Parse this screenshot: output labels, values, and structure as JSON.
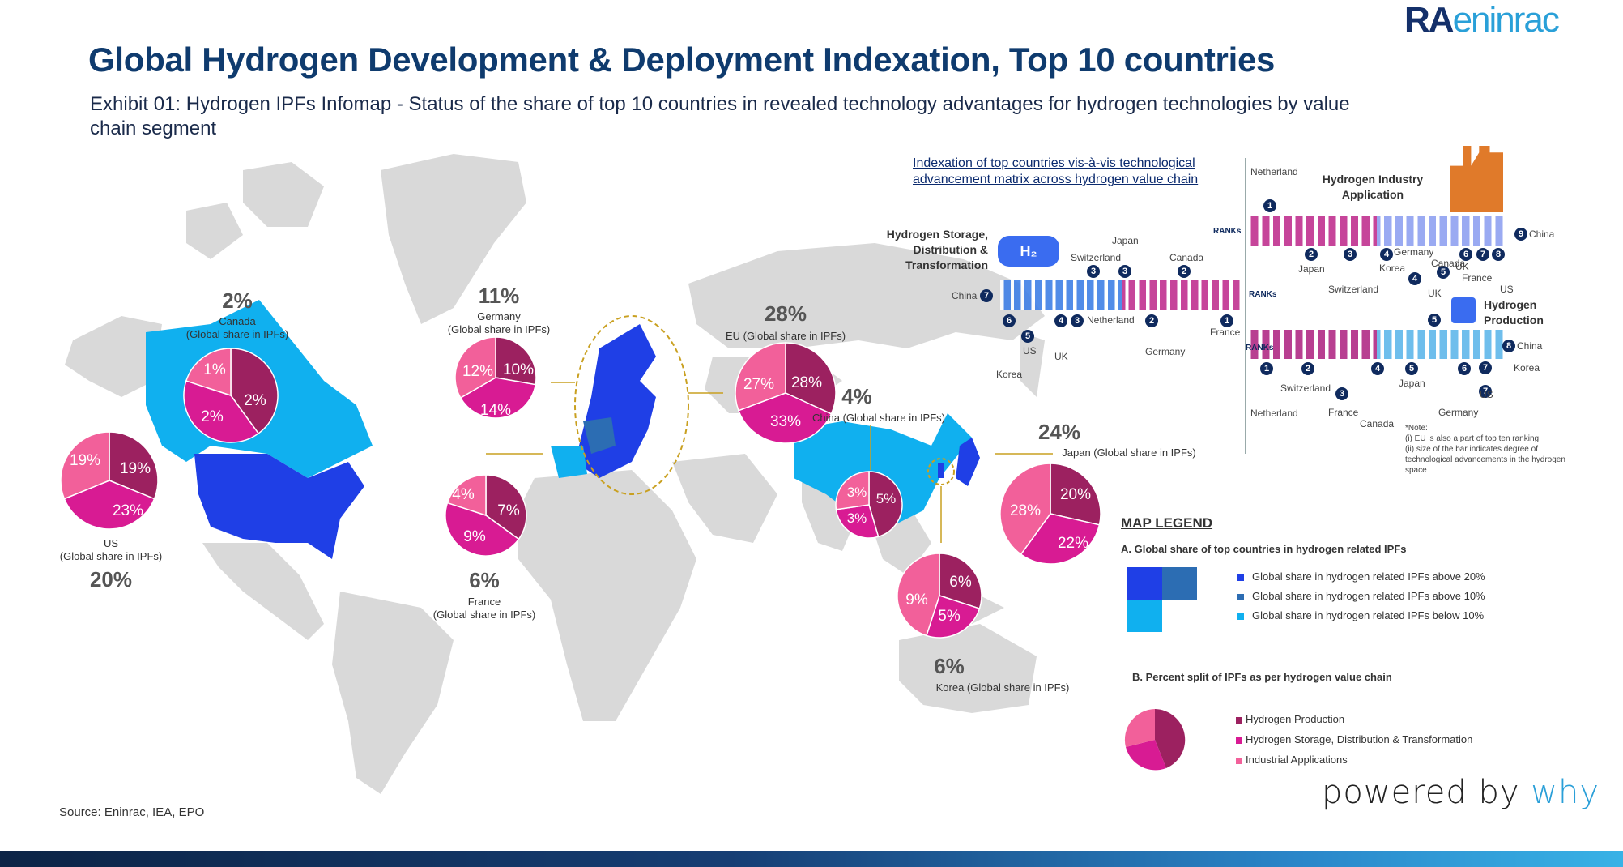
{
  "header": {
    "title": "Global Hydrogen Development & Deployment Indexation, Top 10 countries",
    "subtitle": "Exhibit 01: Hydrogen IPFs Infomap - Status of the share of top 10 countries in revealed technology advantages for hydrogen technologies by value chain segment",
    "logo_primary": "RA",
    "logo_secondary": "eninrac"
  },
  "countries": [
    {
      "id": "canada",
      "total": "2%",
      "name": "Canada",
      "caption": "(Global share in IPFs)",
      "slices": [
        "1%",
        "2%",
        "2%"
      ]
    },
    {
      "id": "us",
      "total": "20%",
      "name": "US",
      "caption": "(Global share in IPFs)",
      "slices": [
        "19%",
        "19%",
        "23%"
      ]
    },
    {
      "id": "germany",
      "total": "11%",
      "name": "Germany",
      "caption": "(Global share in IPFs)",
      "slices": [
        "12%",
        "10%",
        "14%"
      ]
    },
    {
      "id": "france",
      "total": "6%",
      "name": "France",
      "caption": "(Global share in IPFs)",
      "slices": [
        "4%",
        "7%",
        "9%"
      ]
    },
    {
      "id": "eu",
      "total": "28%",
      "name": "EU (Global share in IPFs)",
      "caption": "",
      "slices": [
        "27%",
        "28%",
        "33%"
      ]
    },
    {
      "id": "china",
      "total": "4%",
      "name": "China (Global share in IPFs)",
      "caption": "",
      "slices": [
        "3%",
        "5%",
        "3%"
      ]
    },
    {
      "id": "japan",
      "total": "24%",
      "name": "Japan (Global share in IPFs)",
      "caption": "",
      "slices": [
        "28%",
        "20%",
        "22%"
      ]
    },
    {
      "id": "korea",
      "total": "6%",
      "name": "Korea (Global share in IPFs)",
      "caption": "",
      "slices": [
        "9%",
        "6%",
        "5%"
      ]
    }
  ],
  "matrix": {
    "title": "Indexation of top countries vis-à-vis technological advancement matrix across hydrogen value chain",
    "ranks_label": "RANKs",
    "industry": {
      "label": "Hydrogen Industry Application",
      "above": [
        {
          "rank": "1",
          "country": "Netherland"
        }
      ],
      "end": {
        "rank": "9",
        "country": "China"
      },
      "below": [
        {
          "rank": "2",
          "country": "Japan"
        },
        {
          "rank": "3",
          "country": "Switzerland"
        },
        {
          "rank": "4",
          "country": "Korea"
        },
        {
          "rank": "4",
          "country": "Germany"
        },
        {
          "rank": "5",
          "country": "Canada"
        },
        {
          "rank": "6",
          "country": "UK"
        },
        {
          "rank": "7",
          "country": "France"
        },
        {
          "rank": "8",
          "country": "US"
        }
      ]
    },
    "storage": {
      "label": "Hydrogen Storage, Distribution & Transformation",
      "start": {
        "rank": "7",
        "country": "China"
      },
      "above": [
        {
          "rank": "3",
          "country": "Switzerland"
        },
        {
          "rank": "3",
          "country": "Japan"
        },
        {
          "rank": "2",
          "country": "Canada"
        }
      ],
      "below": [
        {
          "rank": "6",
          "country": "Korea"
        },
        {
          "rank": "5",
          "country": "US"
        },
        {
          "rank": "4",
          "country": "UK"
        },
        {
          "rank": "3",
          "country": "Netherland"
        },
        {
          "rank": "2",
          "country": "Germany"
        },
        {
          "rank": "1",
          "country": "France"
        }
      ]
    },
    "production": {
      "label": "Hydrogen Production",
      "above": [
        {
          "rank": "5",
          "country": "UK"
        }
      ],
      "end": {
        "rank": "8",
        "country": "China"
      },
      "end2": {
        "rank": "7",
        "country": "Korea"
      },
      "below": [
        {
          "rank": "1",
          "country": "Netherland"
        },
        {
          "rank": "2",
          "country": "Switzerland"
        },
        {
          "rank": "3",
          "country": "France"
        },
        {
          "rank": "4",
          "country": "Canada"
        },
        {
          "rank": "5",
          "country": "Japan"
        },
        {
          "rank": "6",
          "country": "Germany"
        },
        {
          "rank": "7",
          "country": "US"
        }
      ]
    },
    "note": [
      "*Note:",
      "(i) EU is also a part of top ten ranking",
      "(ii) size of the bar indicates degree of technological advancements in the hydrogen space"
    ],
    "tank_label": "H₂"
  },
  "legend": {
    "title": "MAP LEGEND",
    "section_a": "A. Global share of top countries in hydrogen related IPFs",
    "a_items": [
      {
        "label": "Global share in hydrogen related IPFs above 20%",
        "color": "#1f3fe6"
      },
      {
        "label": "Global share in hydrogen related IPFs above 10%",
        "color": "#2c6db3"
      },
      {
        "label": "Global share in hydrogen related IPFs below 10%",
        "color": "#10b0ef"
      }
    ],
    "section_b": "B. Percent split of IPFs as per hydrogen value chain",
    "b_items": [
      {
        "label": "Hydrogen Production",
        "color": "#9c2160"
      },
      {
        "label": "Hydrogen Storage, Distribution & Transformation",
        "color": "#d81b93"
      },
      {
        "label": "Industrial Applications",
        "color": "#f2609a"
      }
    ]
  },
  "colors": {
    "production": "#9c2160",
    "storage": "#d81b93",
    "industrial": "#f2609a",
    "land": "#d9d9d9",
    "high": "#1f3fe6",
    "mid": "#2c6db3",
    "low": "#10b0ef"
  },
  "footer": {
    "powered_prefix": "powered by ",
    "powered_brand": "why",
    "source": "Source: Eninrac,  IEA, EPO"
  }
}
